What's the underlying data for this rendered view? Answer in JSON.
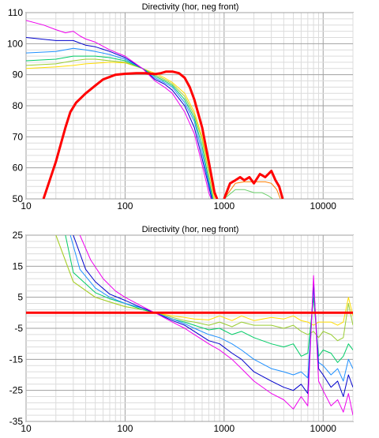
{
  "chart_data": [
    {
      "type": "line",
      "title": "Directivity (hor, neg front)",
      "xscale": "log",
      "xlim": [
        10,
        20000
      ],
      "ylim": [
        50,
        110
      ],
      "xticks": [
        10,
        100,
        1000,
        10000
      ],
      "xtick_labels": [
        "10",
        "100",
        "1000",
        "10000"
      ],
      "yticks": [
        50,
        60,
        70,
        80,
        90,
        100,
        110
      ],
      "ytick_labels": [
        "50",
        "60",
        "70",
        "80",
        "90",
        "100",
        "110"
      ],
      "grid": true,
      "series": [
        {
          "color": "#ff0000",
          "width": 3,
          "x": [
            15,
            20,
            25,
            28,
            32,
            40,
            50,
            60,
            80,
            100,
            130,
            160,
            200,
            230,
            260,
            300,
            350,
            400,
            450,
            500,
            600,
            700,
            800,
            900
          ],
          "y": [
            50,
            62,
            73,
            78,
            81,
            84,
            86.5,
            88.5,
            90,
            90.3,
            90.5,
            90.5,
            90.2,
            90.5,
            91,
            91,
            90.5,
            89,
            86,
            82,
            73,
            62,
            52,
            48
          ]
        },
        {
          "color": "#ff0000",
          "width": 3,
          "x": [
            1000,
            1150,
            1300,
            1450,
            1600,
            1800,
            2000,
            2300,
            2600,
            3000,
            3300,
            3600,
            3900
          ],
          "y": [
            50,
            55,
            56,
            57,
            56,
            57,
            55,
            58,
            57,
            59,
            56,
            54,
            50
          ]
        },
        {
          "color": "#ff7f00",
          "width": 1,
          "x": [
            1000,
            1300,
            1600,
            2000,
            2600,
            3000,
            3400,
            3700
          ],
          "y": [
            50,
            55,
            55.5,
            55.5,
            55.5,
            55,
            53,
            50
          ]
        },
        {
          "color": "#ffdd00",
          "width": 1,
          "x": [
            10,
            20,
            30,
            40,
            50,
            70,
            100,
            150,
            200,
            250,
            300,
            400,
            500,
            600,
            700,
            800
          ],
          "y": [
            92,
            92.5,
            93,
            93.5,
            93.7,
            94,
            93.8,
            92,
            90.5,
            89,
            87.5,
            84,
            78,
            70,
            60,
            50
          ]
        },
        {
          "color": "#9acd32",
          "width": 1,
          "x": [
            10,
            20,
            30,
            40,
            50,
            70,
            100,
            150,
            200,
            250,
            300,
            400,
            500,
            600,
            700,
            780
          ],
          "y": [
            93,
            93.5,
            94.5,
            95,
            95,
            94.5,
            94,
            92,
            90,
            88.5,
            87,
            83,
            77,
            69,
            58,
            50
          ]
        },
        {
          "color": "#6ad06a",
          "width": 1,
          "x": [
            1000,
            1300,
            1600,
            2000,
            2400,
            2800,
            3100
          ],
          "y": [
            50,
            53,
            53,
            52,
            52,
            51,
            50
          ]
        },
        {
          "color": "#00cc66",
          "width": 1,
          "x": [
            10,
            20,
            30,
            40,
            50,
            70,
            100,
            150,
            200,
            250,
            300,
            400,
            500,
            600,
            700,
            770
          ],
          "y": [
            94.5,
            95,
            96,
            96,
            96,
            95.5,
            94.5,
            92,
            89.5,
            88,
            86.5,
            82,
            76,
            67,
            56,
            50
          ]
        },
        {
          "color": "#1e90ff",
          "width": 1,
          "x": [
            10,
            20,
            30,
            40,
            50,
            70,
            100,
            150,
            200,
            250,
            300,
            400,
            500,
            600,
            700,
            760
          ],
          "y": [
            97,
            97.5,
            98.5,
            98,
            97.5,
            96.5,
            95,
            92,
            89,
            87.5,
            86,
            81,
            75,
            65,
            55,
            50
          ]
        },
        {
          "color": "#0000cd",
          "width": 1,
          "x": [
            10,
            20,
            30,
            40,
            50,
            70,
            100,
            150,
            200,
            250,
            300,
            400,
            500,
            600,
            700,
            750
          ],
          "y": [
            102,
            101,
            101,
            99.5,
            99,
            97.5,
            95.5,
            92,
            88.5,
            87,
            85,
            80,
            73,
            63,
            54,
            50
          ]
        },
        {
          "color": "#ee00ee",
          "width": 1,
          "x": [
            10,
            15,
            20,
            25,
            30,
            35,
            40,
            50,
            70,
            100,
            150,
            200,
            250,
            300,
            400,
            500,
            600,
            700,
            740
          ],
          "y": [
            107.5,
            106,
            104.5,
            103.5,
            104,
            102.5,
            101.5,
            100.5,
            98,
            96,
            92,
            88,
            86,
            84,
            78,
            71,
            61,
            52,
            50
          ]
        }
      ]
    },
    {
      "type": "line",
      "title": "Directivity (hor, neg front)",
      "xscale": "log",
      "xlim": [
        10,
        20000
      ],
      "ylim": [
        -35,
        25
      ],
      "xticks": [
        10,
        100,
        1000,
        10000
      ],
      "xtick_labels": [
        "10",
        "100",
        "1000",
        "10000"
      ],
      "yticks": [
        -35,
        -25,
        -15,
        -5,
        5,
        15,
        25
      ],
      "ytick_labels": [
        "-35",
        "-25",
        "-15",
        "-5",
        "5",
        "15",
        "25"
      ],
      "grid": true,
      "series": [
        {
          "color": "#ff0000",
          "width": 3,
          "x": [
            10,
            20000
          ],
          "y": [
            0,
            0
          ]
        },
        {
          "color": "#ffdd00",
          "width": 1,
          "x": [
            20,
            30,
            50,
            70,
            100,
            150,
            200,
            300,
            400,
            500,
            700,
            900,
            1200,
            1500,
            2000,
            3000,
            4000,
            5000,
            6000,
            7000,
            8000,
            9000,
            10000,
            12000,
            14000,
            16000,
            18000,
            20000
          ],
          "y": [
            25,
            10,
            5,
            3.5,
            2,
            1,
            0,
            -1,
            -1.5,
            -2,
            -2.3,
            -1,
            -2.5,
            -1,
            -2.5,
            -1.5,
            -2,
            -1,
            -2.5,
            -3,
            -4,
            -3,
            -3,
            -3,
            -4,
            -3,
            5,
            -1
          ]
        },
        {
          "color": "#9acd32",
          "width": 1,
          "x": [
            20,
            30,
            50,
            70,
            100,
            150,
            200,
            300,
            400,
            500,
            700,
            900,
            1200,
            1500,
            2000,
            3000,
            4000,
            5000,
            6000,
            7000,
            8000,
            9000,
            10000,
            12000,
            14000,
            16000,
            18000,
            20000
          ],
          "y": [
            25,
            10,
            5,
            3.5,
            2,
            1,
            0,
            -1.5,
            -2.5,
            -3,
            -4,
            -3,
            -4.5,
            -3,
            -4,
            -4,
            -5,
            -4,
            -6,
            -7,
            -6,
            -8,
            -6,
            -7,
            -9,
            -8,
            3,
            -4
          ]
        },
        {
          "color": "#00cc66",
          "width": 1,
          "x": [
            25,
            30,
            50,
            70,
            100,
            150,
            200,
            300,
            400,
            500,
            700,
            900,
            1200,
            1500,
            2000,
            3000,
            4000,
            5000,
            6000,
            7000,
            8000,
            9000,
            10000,
            12000,
            14000,
            16000,
            18000,
            20000
          ],
          "y": [
            25,
            13,
            6.5,
            4.5,
            3,
            1,
            0,
            -2,
            -3,
            -4,
            -5.5,
            -5,
            -7,
            -6,
            -8,
            -10,
            -11,
            -10,
            -14,
            -13,
            5,
            -14,
            -12,
            -13,
            -16,
            -14,
            -10,
            -12
          ]
        },
        {
          "color": "#1e90ff",
          "width": 1,
          "x": [
            28,
            35,
            50,
            70,
            100,
            150,
            200,
            300,
            400,
            500,
            700,
            900,
            1200,
            1500,
            2000,
            3000,
            4000,
            5000,
            6000,
            7000,
            8000,
            9000,
            10000,
            12000,
            14000,
            16000,
            18000,
            20000
          ],
          "y": [
            25,
            14,
            8,
            5,
            3,
            1.5,
            0,
            -2,
            -3.5,
            -5,
            -7,
            -8,
            -10,
            -12,
            -15,
            -18,
            -19,
            -20,
            -19,
            -21,
            8,
            -16,
            -17,
            -20,
            -18,
            -22,
            -15,
            -18
          ]
        },
        {
          "color": "#0000cd",
          "width": 1,
          "x": [
            30,
            40,
            50,
            70,
            100,
            150,
            200,
            300,
            400,
            500,
            700,
            900,
            1200,
            1500,
            2000,
            3000,
            4000,
            5000,
            6000,
            7000,
            8000,
            9000,
            10000,
            12000,
            14000,
            16000,
            18000,
            20000
          ],
          "y": [
            25,
            14,
            10,
            6,
            4,
            1.5,
            0,
            -2.5,
            -4,
            -6,
            -9,
            -10,
            -13,
            -15,
            -19,
            -22,
            -24,
            -25,
            -23,
            -26,
            10,
            -18,
            -20,
            -24,
            -22,
            -27,
            -20,
            -24
          ]
        },
        {
          "color": "#ee00ee",
          "width": 1,
          "x": [
            35,
            45,
            60,
            80,
            100,
            150,
            200,
            300,
            400,
            500,
            700,
            900,
            1200,
            1500,
            2000,
            3000,
            4000,
            5000,
            6000,
            7000,
            8000,
            9000,
            10000,
            12000,
            14000,
            16000,
            18000,
            20000
          ],
          "y": [
            25,
            17,
            11,
            7,
            5,
            2,
            0,
            -3,
            -5,
            -7,
            -10,
            -12,
            -15,
            -18,
            -22,
            -26,
            -28,
            -31,
            -27,
            -30,
            12,
            -22,
            -25,
            -30,
            -28,
            -32,
            -26,
            -33
          ]
        }
      ]
    }
  ]
}
